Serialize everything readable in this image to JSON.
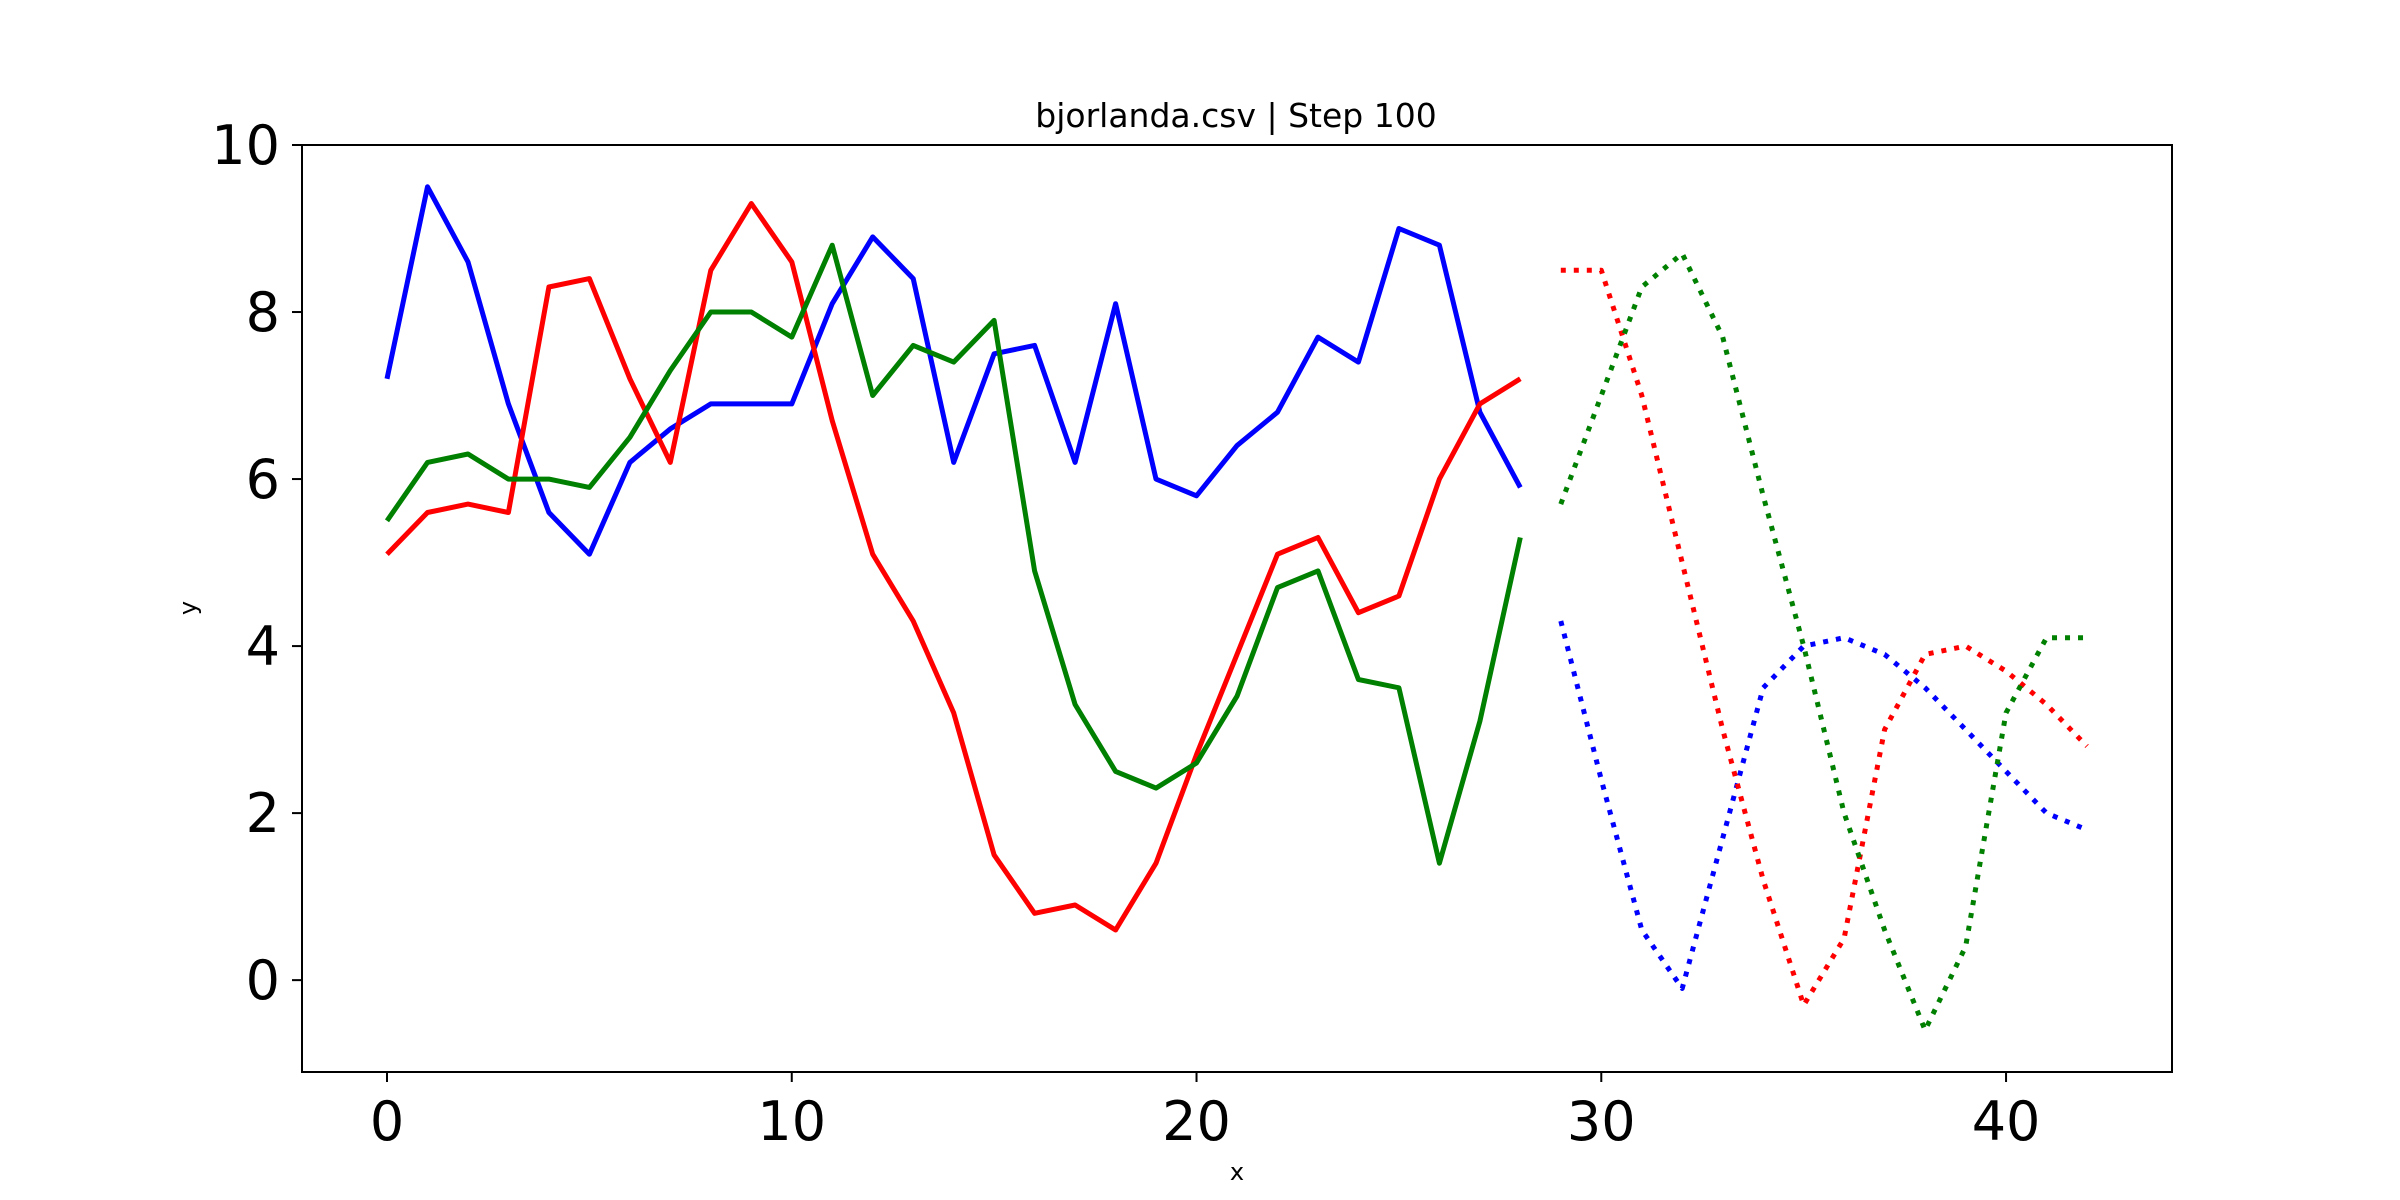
{
  "chart_data": {
    "type": "line",
    "title": "bjorlanda.csv | Step 100",
    "xlabel": "x",
    "ylabel": "y",
    "xlim": [
      -2.1,
      44.1
    ],
    "ylim": [
      -1.1,
      10.0
    ],
    "xticks": [
      0,
      10,
      20,
      30,
      40
    ],
    "yticks": [
      0,
      2,
      4,
      6,
      8,
      10
    ],
    "grid": false,
    "legend": "none",
    "series": [
      {
        "color": "#0000ff",
        "style": "solid",
        "x": [
          0,
          1,
          2,
          3,
          4,
          5,
          6,
          7,
          8,
          9,
          10,
          11,
          12,
          13,
          14,
          15,
          16,
          17,
          18,
          19,
          20,
          21,
          22,
          23,
          24,
          25,
          26,
          27,
          28
        ],
        "y": [
          7.2,
          9.5,
          8.6,
          6.9,
          5.6,
          5.1,
          6.2,
          6.6,
          6.9,
          6.9,
          6.9,
          8.1,
          8.9,
          8.4,
          6.2,
          7.5,
          7.6,
          6.2,
          8.1,
          6.0,
          5.8,
          6.4,
          6.8,
          7.7,
          7.4,
          9.0,
          8.8,
          6.8,
          5.9
        ]
      },
      {
        "color": "#ff0000",
        "style": "solid",
        "x": [
          0,
          1,
          2,
          3,
          4,
          5,
          6,
          7,
          8,
          9,
          10,
          11,
          12,
          13,
          14,
          15,
          16,
          17,
          18,
          19,
          20,
          21,
          22,
          23,
          24,
          25,
          26,
          27,
          28
        ],
        "y": [
          5.1,
          5.6,
          5.7,
          5.6,
          8.3,
          8.4,
          7.2,
          6.2,
          8.5,
          9.3,
          8.6,
          6.7,
          5.1,
          4.3,
          3.2,
          1.5,
          0.8,
          0.9,
          0.6,
          1.4,
          2.7,
          3.9,
          5.1,
          5.3,
          4.4,
          4.6,
          6.0,
          6.9,
          7.2
        ]
      },
      {
        "color": "#008000",
        "style": "solid",
        "x": [
          0,
          1,
          2,
          3,
          4,
          5,
          6,
          7,
          8,
          9,
          10,
          11,
          12,
          13,
          14,
          15,
          16,
          17,
          18,
          19,
          20,
          21,
          22,
          23,
          24,
          25,
          26,
          27,
          28
        ],
        "y": [
          5.5,
          6.2,
          6.3,
          6.0,
          6.0,
          5.9,
          6.5,
          7.3,
          8.0,
          8.0,
          7.7,
          8.8,
          7.0,
          7.6,
          7.4,
          7.9,
          4.9,
          3.3,
          2.5,
          2.3,
          2.6,
          3.4,
          4.7,
          4.9,
          3.6,
          3.5,
          1.4,
          3.1,
          5.3
        ]
      },
      {
        "color": "#0000ff",
        "style": "dotted",
        "x": [
          29,
          30,
          31,
          32,
          33,
          34,
          35,
          36,
          37,
          38,
          39,
          40,
          41,
          42
        ],
        "y": [
          4.3,
          2.4,
          0.6,
          -0.1,
          1.7,
          3.5,
          4.0,
          4.1,
          3.9,
          3.5,
          3.0,
          2.5,
          2.0,
          1.8
        ]
      },
      {
        "color": "#ff0000",
        "style": "dotted",
        "x": [
          29,
          30,
          31,
          32,
          33,
          34,
          35,
          36,
          37,
          38,
          39,
          40,
          41,
          42
        ],
        "y": [
          8.5,
          8.5,
          7.0,
          5.0,
          3.0,
          1.2,
          -0.3,
          0.5,
          3.0,
          3.9,
          4.0,
          3.7,
          3.3,
          2.8
        ]
      },
      {
        "color": "#008000",
        "style": "dotted",
        "x": [
          29,
          30,
          31,
          32,
          33,
          34,
          35,
          36,
          37,
          38,
          39,
          40,
          41,
          42
        ],
        "y": [
          5.7,
          7.0,
          8.3,
          8.7,
          7.7,
          5.8,
          4.0,
          2.0,
          0.6,
          -0.6,
          0.4,
          3.2,
          4.1,
          4.1
        ]
      }
    ]
  }
}
